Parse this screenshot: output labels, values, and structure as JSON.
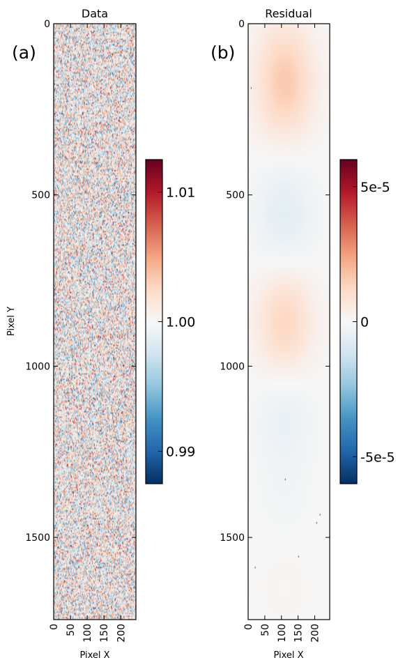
{
  "chart_data": [
    {
      "type": "heatmap",
      "panel_label": "(a)",
      "title": "Data",
      "xlabel": "Pixel X",
      "ylabel": "Pixel Y",
      "xlim": [
        0,
        245
      ],
      "ylim": [
        1740,
        0
      ],
      "xticks": [
        0,
        50,
        100,
        150,
        200
      ],
      "yticks": [
        0,
        500,
        1000,
        1500
      ],
      "colormap": "RdBu_r",
      "colorbar": {
        "range": [
          0.9875,
          1.0125
        ],
        "ticks": [
          0.99,
          1.0,
          1.01
        ],
        "tick_labels": [
          "0.99",
          "1.00",
          "1.01"
        ]
      },
      "field": {
        "description": "pixel noise around 1.00",
        "mean": 1.0,
        "noise_amplitude": 0.004
      }
    },
    {
      "type": "heatmap",
      "panel_label": "(b)",
      "title": "Residual",
      "xlabel": "Pixel X",
      "ylabel": "",
      "xlim": [
        0,
        245
      ],
      "ylim": [
        1740,
        0
      ],
      "xticks": [
        0,
        50,
        100,
        150,
        200
      ],
      "yticks": [
        0,
        500,
        1000,
        1500
      ],
      "colormap": "RdBu_r",
      "colorbar": {
        "range": [
          -6e-05,
          6e-05
        ],
        "ticks": [
          -5e-05,
          0,
          5e-05
        ],
        "tick_labels": [
          "-5e-5",
          "0",
          "5e-5"
        ]
      },
      "blobs": [
        {
          "x": 110,
          "y": 170,
          "sx": 62,
          "sy": 120,
          "amplitude": 1.6e-05
        },
        {
          "x": 110,
          "y": 560,
          "sx": 62,
          "sy": 125,
          "amplitude": -6.5e-06
        },
        {
          "x": 110,
          "y": 870,
          "sx": 60,
          "sy": 110,
          "amplitude": 1.3e-05
        },
        {
          "x": 110,
          "y": 1140,
          "sx": 60,
          "sy": 110,
          "amplitude": -4.5e-06
        },
        {
          "x": 110,
          "y": 1400,
          "sx": 60,
          "sy": 110,
          "amplitude": -1.5e-06
        },
        {
          "x": 110,
          "y": 1620,
          "sx": 60,
          "sy": 110,
          "amplitude": 1.2e-06
        }
      ],
      "specks": [
        {
          "x": 8,
          "y": 185
        },
        {
          "x": 110,
          "y": 1330
        },
        {
          "x": 215,
          "y": 1430
        },
        {
          "x": 205,
          "y": 1455
        },
        {
          "x": 150,
          "y": 1555
        },
        {
          "x": 20,
          "y": 1585
        }
      ]
    }
  ]
}
